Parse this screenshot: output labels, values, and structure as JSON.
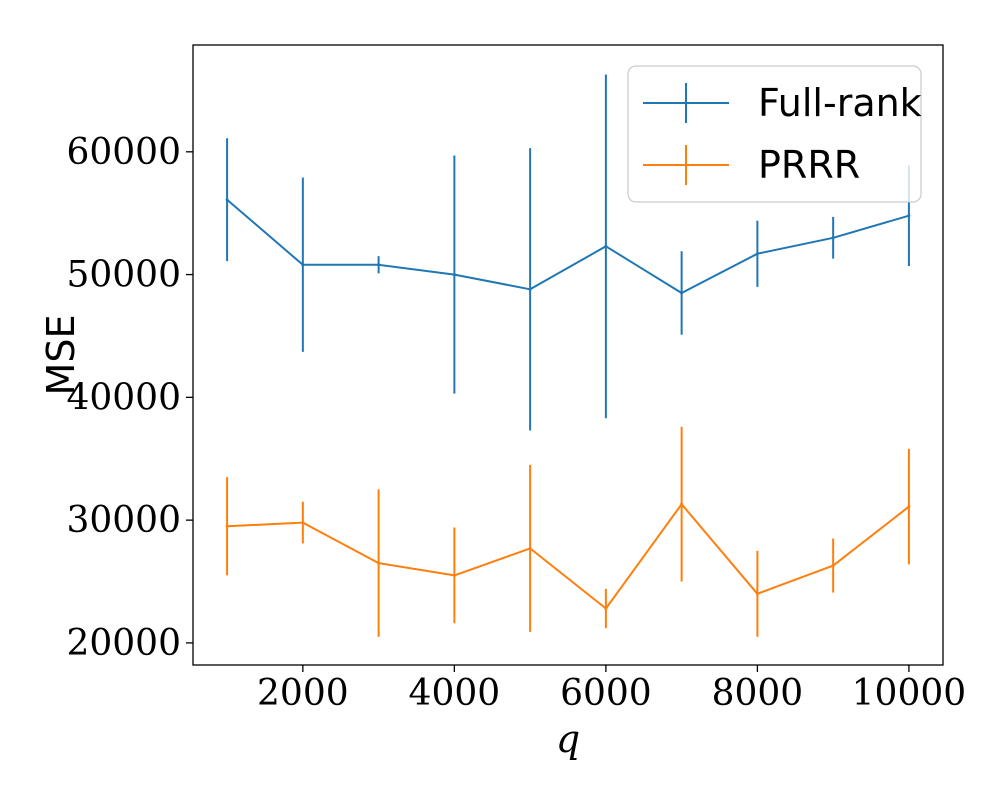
{
  "chart_data": {
    "type": "line",
    "title": "",
    "xlabel": "q",
    "ylabel": "MSE",
    "xlim": [
      550,
      10450
    ],
    "ylim": [
      18200,
      68700
    ],
    "x_ticks": [
      2000,
      4000,
      6000,
      8000,
      10000
    ],
    "x_tick_labels": [
      "2000",
      "4000",
      "6000",
      "8000",
      "10000"
    ],
    "y_ticks": [
      20000,
      30000,
      40000,
      50000,
      60000
    ],
    "y_tick_labels": [
      "20000",
      "30000",
      "40000",
      "50000",
      "60000"
    ],
    "grid": false,
    "legend_position": "top-right",
    "x": [
      1000,
      2000,
      3000,
      4000,
      5000,
      6000,
      7000,
      8000,
      9000,
      10000
    ],
    "series": [
      {
        "name": "Full-rank",
        "color": "#1f77b4",
        "values": [
          56100,
          50800,
          50800,
          50000,
          48800,
          52300,
          48500,
          51700,
          53000,
          54800
        ],
        "errors": [
          5000,
          7100,
          700,
          9700,
          11500,
          14000,
          3400,
          2700,
          1700,
          4100
        ]
      },
      {
        "name": "PRRR",
        "color": "#ff7f0e",
        "values": [
          29500,
          29800,
          26500,
          25500,
          27700,
          22800,
          31300,
          24000,
          26300,
          31100
        ],
        "errors": [
          4000,
          1700,
          6000,
          3900,
          6800,
          1600,
          6300,
          3500,
          2200,
          4700
        ]
      }
    ]
  }
}
